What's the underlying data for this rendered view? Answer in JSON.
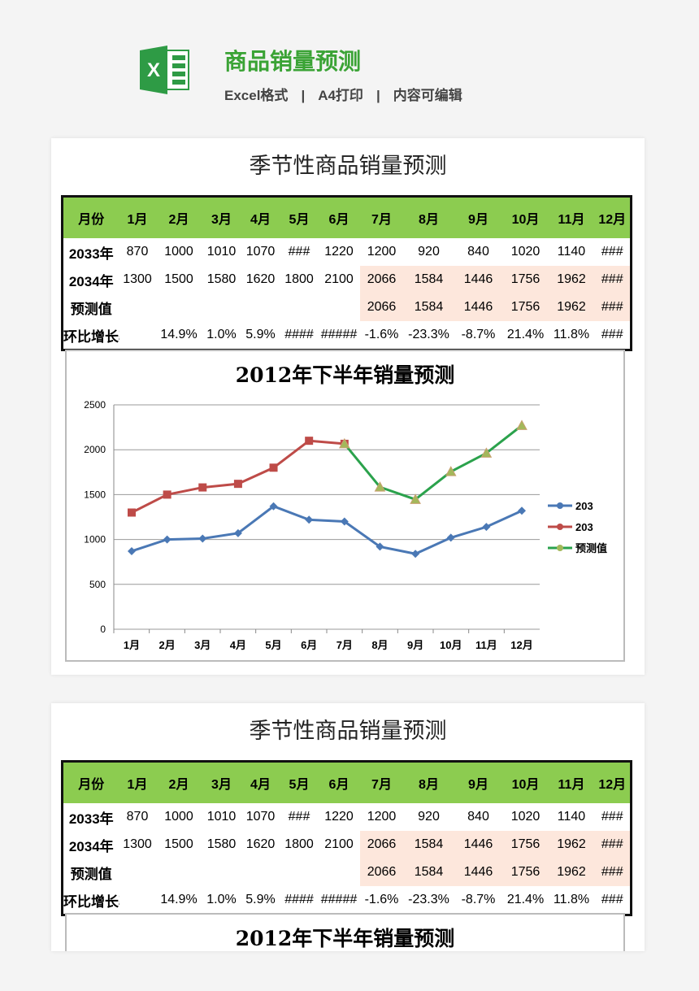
{
  "header": {
    "title": "商品销量预测",
    "sub": [
      "Excel格式",
      "A4打印",
      "内容可编辑"
    ],
    "sep": "|",
    "logo_letter": "X"
  },
  "sheet": {
    "title": "季节性商品销量预测",
    "head": [
      "月份",
      "1月",
      "2月",
      "3月",
      "4月",
      "5月",
      "6月",
      "7月",
      "8月",
      "9月",
      "10月",
      "11月",
      "12月"
    ],
    "rows": [
      [
        "2033年",
        "870",
        "1000",
        "1010",
        "1070",
        "###",
        "1220",
        "1200",
        "920",
        "840",
        "1020",
        "1140",
        "###"
      ],
      [
        "2034年",
        "1300",
        "1500",
        "1580",
        "1620",
        "1800",
        "2100",
        "2066",
        "1584",
        "1446",
        "1756",
        "1962",
        "###"
      ],
      [
        "预测值",
        "",
        "",
        "",
        "",
        "",
        "",
        "2066",
        "1584",
        "1446",
        "1756",
        "1962",
        "###"
      ],
      [
        "环比增长率",
        "",
        "14.9%",
        "1.0%",
        "5.9%",
        "####",
        "#####",
        "-1.6%",
        "-23.3%",
        "-8.7%",
        "21.4%",
        "11.8%",
        "###"
      ]
    ]
  },
  "chart_data": {
    "type": "line",
    "title": "2012年下半年销量预测",
    "categories": [
      "1月",
      "2月",
      "3月",
      "4月",
      "5月",
      "6月",
      "7月",
      "8月",
      "9月",
      "10月",
      "11月",
      "12月"
    ],
    "ylim": [
      0,
      2500
    ],
    "yticks": [
      "0",
      "500",
      "1000",
      "1500",
      "2000",
      "2500"
    ],
    "grid": true,
    "legend": "right",
    "series": [
      {
        "name": "203",
        "color": "#4a78b5",
        "marker": "diamond",
        "values": [
          870,
          1000,
          1010,
          1070,
          1370,
          1220,
          1200,
          920,
          840,
          1020,
          1140,
          1320
        ]
      },
      {
        "name": "203",
        "color": "#be4b48",
        "marker": "square",
        "values": [
          1300,
          1500,
          1580,
          1620,
          1800,
          2100,
          2066,
          null,
          null,
          null,
          null,
          null
        ]
      },
      {
        "name": "预测值",
        "color": "#2ba24c",
        "marker": "triangle",
        "values": [
          null,
          null,
          null,
          null,
          null,
          null,
          2066,
          1584,
          1446,
          1756,
          1962,
          2270
        ]
      }
    ]
  }
}
